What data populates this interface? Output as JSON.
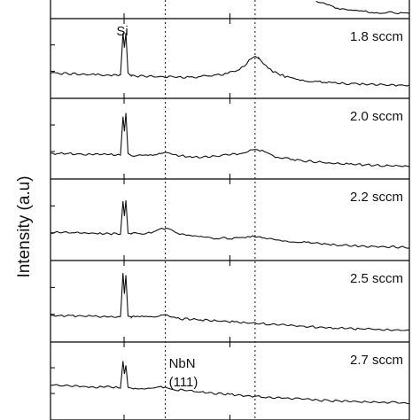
{
  "chart_data": {
    "type": "line",
    "ylabel": "Intensity (a.u)",
    "x_range": [
      0,
      100
    ],
    "reference_lines": [
      {
        "x": 32,
        "label": "NbN (111)",
        "label_lines": [
          "NbN",
          "(111)"
        ]
      },
      {
        "x": 57,
        "label": ""
      }
    ],
    "annotations": [
      {
        "text": "Si",
        "panel": 0
      }
    ],
    "peak_markers": [
      {
        "name": "Si",
        "x": 20.5
      }
    ],
    "panels": [
      {
        "name": "top (partial)",
        "label": "",
        "series": {
          "name": "",
          "x": [
            74,
            80,
            86,
            92,
            100
          ],
          "y": [
            0.85,
            0.35,
            0.22,
            0.15,
            0.12
          ]
        }
      },
      {
        "name": "1.8 sccm",
        "label": "1.8 sccm",
        "series": {
          "name": "1.8 sccm",
          "x": [
            0,
            10,
            19.5,
            20.2,
            20.6,
            21.0,
            21.6,
            22.5,
            30,
            40,
            48,
            52,
            54,
            56,
            57,
            58,
            60,
            62,
            66,
            72,
            80,
            90,
            100
          ],
          "y": [
            0.3,
            0.28,
            0.27,
            0.85,
            0.65,
            0.85,
            0.3,
            0.26,
            0.25,
            0.24,
            0.28,
            0.33,
            0.4,
            0.5,
            0.53,
            0.5,
            0.4,
            0.32,
            0.24,
            0.19,
            0.16,
            0.14,
            0.13
          ]
        }
      },
      {
        "name": "2.0 sccm",
        "label": "2.0 sccm",
        "series": {
          "name": "2.0 sccm",
          "x": [
            0,
            10,
            19.5,
            20.2,
            20.6,
            21.0,
            21.6,
            22.5,
            29,
            32,
            35,
            42,
            52,
            55,
            57,
            59,
            62,
            70,
            80,
            90,
            100
          ],
          "y": [
            0.3,
            0.29,
            0.28,
            0.8,
            0.6,
            0.85,
            0.3,
            0.27,
            0.27,
            0.31,
            0.27,
            0.25,
            0.29,
            0.33,
            0.36,
            0.33,
            0.26,
            0.2,
            0.16,
            0.14,
            0.12
          ]
        }
      },
      {
        "name": "2.2 sccm",
        "label": "2.2 sccm",
        "series": {
          "name": "2.2 sccm",
          "x": [
            0,
            10,
            19.5,
            20.2,
            20.6,
            21.0,
            21.6,
            22.5,
            28,
            31,
            33,
            36,
            45,
            53,
            57,
            61,
            70,
            80,
            90,
            100
          ],
          "y": [
            0.33,
            0.32,
            0.31,
            0.75,
            0.55,
            0.76,
            0.32,
            0.31,
            0.32,
            0.38,
            0.37,
            0.3,
            0.25,
            0.25,
            0.28,
            0.24,
            0.2,
            0.16,
            0.14,
            0.13
          ]
        }
      },
      {
        "name": "2.5 sccm",
        "label": "2.5 sccm",
        "series": {
          "name": "2.5 sccm",
          "x": [
            0,
            10,
            19.5,
            20.2,
            20.6,
            21.0,
            21.6,
            22.5,
            29,
            32,
            35,
            45,
            55,
            65,
            75,
            85,
            100
          ],
          "y": [
            0.31,
            0.3,
            0.29,
            0.88,
            0.6,
            0.85,
            0.3,
            0.29,
            0.29,
            0.31,
            0.27,
            0.24,
            0.21,
            0.18,
            0.15,
            0.13,
            0.11
          ]
        }
      },
      {
        "name": "2.7 sccm",
        "label": "2.7 sccm",
        "series": {
          "name": "2.7 sccm",
          "x": [
            0,
            10,
            19.5,
            20.2,
            20.6,
            21.0,
            21.6,
            22.5,
            29,
            32,
            35,
            45,
            55,
            65,
            75,
            85,
            100
          ],
          "y": [
            0.45,
            0.42,
            0.41,
            0.78,
            0.6,
            0.72,
            0.41,
            0.4,
            0.4,
            0.42,
            0.38,
            0.33,
            0.29,
            0.26,
            0.23,
            0.21,
            0.19
          ]
        }
      }
    ]
  }
}
